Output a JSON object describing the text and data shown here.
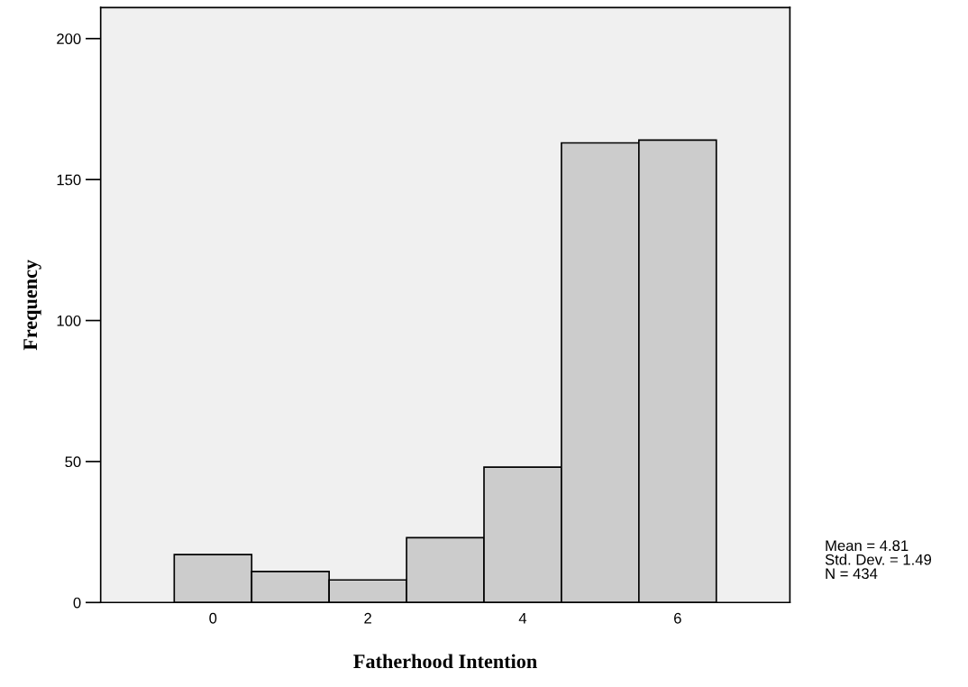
{
  "chart_data": {
    "type": "histogram",
    "xlabel": "Fatherhood Intention",
    "ylabel": "Frequency",
    "bins": [
      -0.5,
      0.5,
      1.5,
      2.5,
      3.5,
      4.5,
      5.5,
      6.5
    ],
    "values": [
      17,
      11,
      8,
      23,
      48,
      163,
      164
    ],
    "color": "#cccccc",
    "xlim": [
      -1.45,
      7.45
    ],
    "xticks": [
      0,
      2,
      4,
      6
    ],
    "ylim": [
      0,
      211
    ],
    "yticks": [
      0,
      50,
      100,
      150,
      200
    ],
    "grid": false,
    "annotations": [
      "Mean = 4.81\nStd. Dev. = 1.49\nN = 434"
    ]
  }
}
